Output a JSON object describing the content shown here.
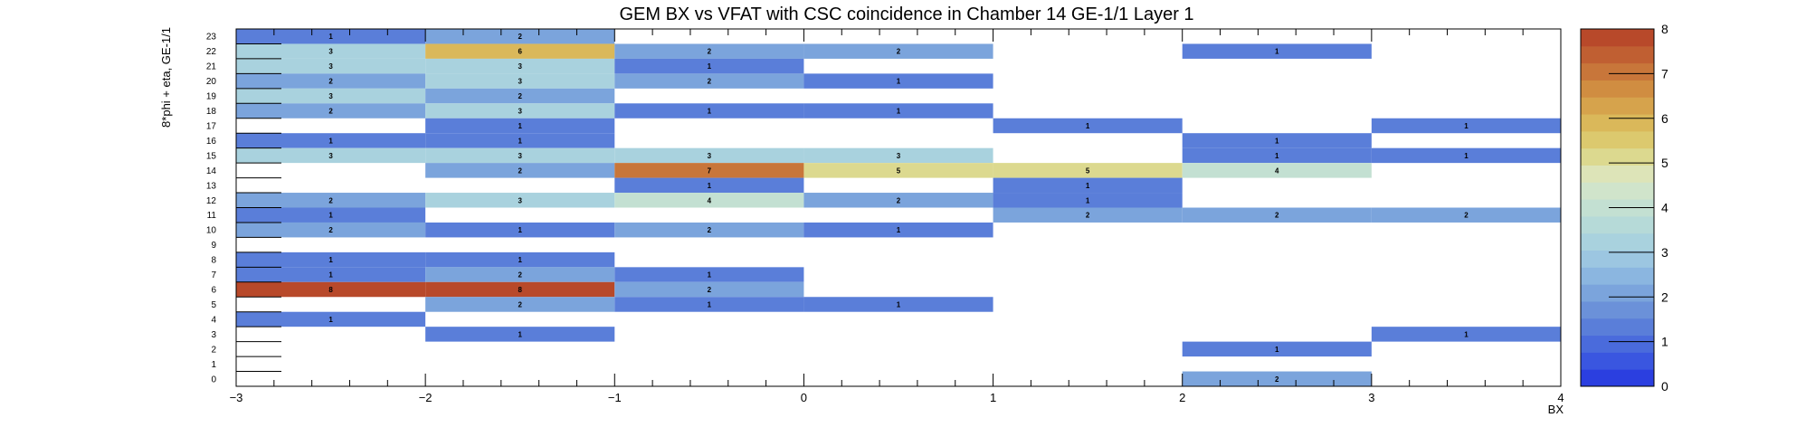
{
  "chart_data": {
    "type": "heatmap",
    "title": "GEM BX vs VFAT with CSC coincidence in Chamber 14 GE-1/1 Layer 1",
    "xlabel": "BX",
    "ylabel": "8*phi + eta, GE-1/1",
    "xlim": [
      -3,
      4
    ],
    "ylim": [
      0,
      23
    ],
    "x_ticks": [
      "−3",
      "−2",
      "−1",
      "0",
      "1",
      "2",
      "3",
      "4"
    ],
    "y_ticks": [
      "0",
      "1",
      "2",
      "3",
      "4",
      "5",
      "6",
      "7",
      "8",
      "9",
      "10",
      "11",
      "12",
      "13",
      "14",
      "15",
      "16",
      "17",
      "18",
      "19",
      "20",
      "21",
      "22",
      "23"
    ],
    "x_bins": [
      [
        -3,
        -2
      ],
      [
        -2,
        -1
      ],
      [
        -1,
        0
      ],
      [
        0,
        1
      ],
      [
        1,
        2
      ],
      [
        2,
        3
      ],
      [
        3,
        4
      ]
    ],
    "zlim": [
      0,
      8
    ],
    "z_ticks": [
      "0",
      "1",
      "2",
      "3",
      "4",
      "5",
      "6",
      "7",
      "8"
    ],
    "palette": [
      "#2b3fe0",
      "#3a56e0",
      "#4a6bdc",
      "#5a7ed9",
      "#6b91d9",
      "#7ba4dc",
      "#8bb6e0",
      "#9cc6e1",
      "#a9d2de",
      "#b6dad8",
      "#c3e0d2",
      "#d0e4cb",
      "#dde4b8",
      "#dcd98f",
      "#dcc96e",
      "#dab85a",
      "#d6a34c",
      "#d08d41",
      "#c8763a",
      "#c05f32",
      "#b8492a"
    ],
    "cells": [
      {
        "x": -2.5,
        "y": 23,
        "value": 1
      },
      {
        "x": -1.5,
        "y": 23,
        "value": 2
      },
      {
        "x": -2.5,
        "y": 22,
        "value": 3
      },
      {
        "x": -1.5,
        "y": 22,
        "value": 6
      },
      {
        "x": -0.5,
        "y": 22,
        "value": 2
      },
      {
        "x": 0.5,
        "y": 22,
        "value": 2
      },
      {
        "x": 2.5,
        "y": 22,
        "value": 1
      },
      {
        "x": -2.5,
        "y": 21,
        "value": 3
      },
      {
        "x": -1.5,
        "y": 21,
        "value": 3
      },
      {
        "x": -0.5,
        "y": 21,
        "value": 1
      },
      {
        "x": -2.5,
        "y": 20,
        "value": 2
      },
      {
        "x": -1.5,
        "y": 20,
        "value": 3
      },
      {
        "x": -0.5,
        "y": 20,
        "value": 2
      },
      {
        "x": 0.5,
        "y": 20,
        "value": 1
      },
      {
        "x": -2.5,
        "y": 19,
        "value": 3
      },
      {
        "x": -1.5,
        "y": 19,
        "value": 2
      },
      {
        "x": -2.5,
        "y": 18,
        "value": 2
      },
      {
        "x": -1.5,
        "y": 18,
        "value": 3
      },
      {
        "x": -0.5,
        "y": 18,
        "value": 1
      },
      {
        "x": 0.5,
        "y": 18,
        "value": 1
      },
      {
        "x": -1.5,
        "y": 17,
        "value": 1
      },
      {
        "x": 1.5,
        "y": 17,
        "value": 1
      },
      {
        "x": 3.5,
        "y": 17,
        "value": 1
      },
      {
        "x": -2.5,
        "y": 16,
        "value": 1
      },
      {
        "x": -1.5,
        "y": 16,
        "value": 1
      },
      {
        "x": 2.5,
        "y": 16,
        "value": 1
      },
      {
        "x": -2.5,
        "y": 15,
        "value": 3
      },
      {
        "x": -1.5,
        "y": 15,
        "value": 3
      },
      {
        "x": -0.5,
        "y": 15,
        "value": 3
      },
      {
        "x": 0.5,
        "y": 15,
        "value": 3
      },
      {
        "x": 2.5,
        "y": 15,
        "value": 1
      },
      {
        "x": 3.5,
        "y": 15,
        "value": 1
      },
      {
        "x": -1.5,
        "y": 14,
        "value": 2
      },
      {
        "x": -0.5,
        "y": 14,
        "value": 7
      },
      {
        "x": 0.5,
        "y": 14,
        "value": 5
      },
      {
        "x": 1.5,
        "y": 14,
        "value": 5
      },
      {
        "x": 2.5,
        "y": 14,
        "value": 4
      },
      {
        "x": -0.5,
        "y": 13,
        "value": 1
      },
      {
        "x": 1.5,
        "y": 13,
        "value": 1
      },
      {
        "x": -2.5,
        "y": 12,
        "value": 2
      },
      {
        "x": -1.5,
        "y": 12,
        "value": 3
      },
      {
        "x": -0.5,
        "y": 12,
        "value": 4
      },
      {
        "x": 0.5,
        "y": 12,
        "value": 2
      },
      {
        "x": 1.5,
        "y": 12,
        "value": 1
      },
      {
        "x": -2.5,
        "y": 11,
        "value": 1
      },
      {
        "x": 1.5,
        "y": 11,
        "value": 2
      },
      {
        "x": 2.5,
        "y": 11,
        "value": 2
      },
      {
        "x": 3.5,
        "y": 11,
        "value": 2
      },
      {
        "x": -2.5,
        "y": 10,
        "value": 2
      },
      {
        "x": -1.5,
        "y": 10,
        "value": 1
      },
      {
        "x": -0.5,
        "y": 10,
        "value": 2
      },
      {
        "x": 0.5,
        "y": 10,
        "value": 1
      },
      {
        "x": -2.5,
        "y": 8,
        "value": 1
      },
      {
        "x": -1.5,
        "y": 8,
        "value": 1
      },
      {
        "x": -2.5,
        "y": 7,
        "value": 1
      },
      {
        "x": -1.5,
        "y": 7,
        "value": 2
      },
      {
        "x": -0.5,
        "y": 7,
        "value": 1
      },
      {
        "x": -2.5,
        "y": 6,
        "value": 8
      },
      {
        "x": -1.5,
        "y": 6,
        "value": 8
      },
      {
        "x": -0.5,
        "y": 6,
        "value": 2
      },
      {
        "x": -1.5,
        "y": 5,
        "value": 2
      },
      {
        "x": -0.5,
        "y": 5,
        "value": 1
      },
      {
        "x": 0.5,
        "y": 5,
        "value": 1
      },
      {
        "x": -2.5,
        "y": 4,
        "value": 1
      },
      {
        "x": -1.5,
        "y": 3,
        "value": 1
      },
      {
        "x": 3.5,
        "y": 3,
        "value": 1
      },
      {
        "x": 2.5,
        "y": 2,
        "value": 1
      },
      {
        "x": 2.5,
        "y": 0,
        "value": 2
      }
    ],
    "grid": false
  }
}
